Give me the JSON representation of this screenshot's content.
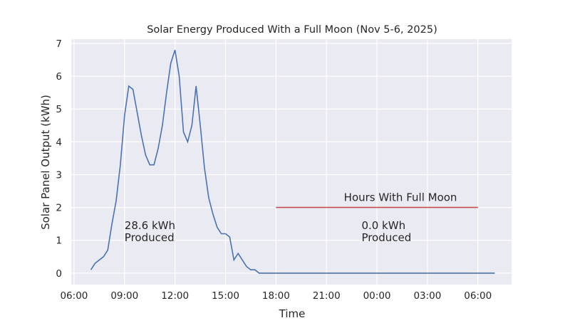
{
  "chart_data": {
    "type": "line",
    "title": "Solar Energy Produced With a Full Moon (Nov 5-6, 2025)",
    "xlabel": "Time",
    "ylabel": "Solar Panel Output (kWh)",
    "xlim": [
      "05:50",
      "08:00 (next day)"
    ],
    "ylim": [
      -0.35,
      7.13
    ],
    "x_ticks": [
      "06:00",
      "09:00",
      "12:00",
      "15:00",
      "18:00",
      "21:00",
      "00:00",
      "03:00",
      "06:00"
    ],
    "y_ticks": [
      "0",
      "1",
      "2",
      "3",
      "4",
      "5",
      "6",
      "7"
    ],
    "grid": true,
    "style": "darkgrid",
    "colors": {
      "background": "#eaeaf2",
      "grid": "#ffffff",
      "series": "#4c72b0",
      "moon": "#c44e52"
    },
    "series": [
      {
        "x": [
          "07:00",
          "07:15",
          "07:30",
          "07:45",
          "08:00",
          "08:15",
          "08:30",
          "08:45",
          "09:00",
          "09:15",
          "09:30",
          "09:45",
          "10:00",
          "10:15",
          "10:30",
          "10:45",
          "11:00",
          "11:15",
          "11:30",
          "11:45",
          "12:00",
          "12:15",
          "12:30",
          "12:45",
          "13:00",
          "13:15",
          "13:30",
          "13:45",
          "14:00",
          "14:15",
          "14:30",
          "14:45",
          "15:00",
          "15:15",
          "15:30",
          "15:45",
          "16:00",
          "16:15",
          "16:30",
          "16:45",
          "17:00",
          "18:00",
          "19:00",
          "20:00",
          "21:00",
          "22:00",
          "23:00",
          "00:00",
          "01:00",
          "02:00",
          "03:00",
          "04:00",
          "05:00",
          "06:00",
          "07:00"
        ],
        "y": [
          0.1,
          0.3,
          0.4,
          0.5,
          0.7,
          1.5,
          2.2,
          3.3,
          4.8,
          5.7,
          5.6,
          4.9,
          4.2,
          3.6,
          3.3,
          3.3,
          3.8,
          4.5,
          5.5,
          6.4,
          6.8,
          6.0,
          4.3,
          4.0,
          4.5,
          5.7,
          4.5,
          3.2,
          2.3,
          1.8,
          1.4,
          1.2,
          1.2,
          1.1,
          0.4,
          0.6,
          0.4,
          0.2,
          0.1,
          0.1,
          0,
          0,
          0,
          0,
          0,
          0,
          0,
          0,
          0,
          0,
          0,
          0,
          0,
          0,
          0
        ]
      }
    ],
    "full_moon_line": {
      "x_start": "18:00",
      "x_end": "06:00",
      "y": 2,
      "label": "Hours With Full Moon"
    },
    "annotations": [
      {
        "x": "09:00",
        "y": 1.1,
        "lines": [
          "28.6 kWh",
          "Produced"
        ]
      },
      {
        "x": "23:00",
        "y": 1.1,
        "lines": [
          "0.0 kWh",
          "Produced"
        ]
      }
    ]
  }
}
